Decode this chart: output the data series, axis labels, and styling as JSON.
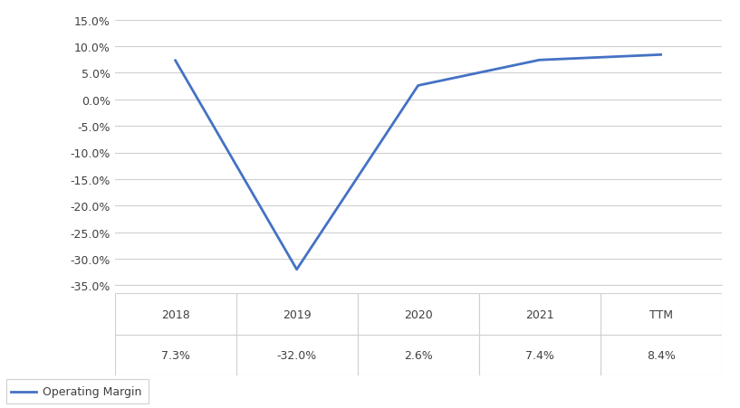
{
  "categories": [
    "2018",
    "2019",
    "2020",
    "2021",
    "TTM"
  ],
  "values": [
    7.3,
    -32.0,
    2.6,
    7.4,
    8.4
  ],
  "line_color": "#4472C4",
  "line_width": 2.0,
  "ylim": [
    -35.0,
    15.0
  ],
  "yticks": [
    -35.0,
    -30.0,
    -25.0,
    -20.0,
    -15.0,
    -10.0,
    -5.0,
    0.0,
    5.0,
    10.0,
    15.0
  ],
  "table_labels": [
    "7.3%",
    "-32.0%",
    "2.6%",
    "7.4%",
    "8.4%"
  ],
  "legend_label": "Operating Margin",
  "grid_color": "#D0D0D0",
  "background_color": "#FFFFFF",
  "font_color": "#404040",
  "table_font_size": 9,
  "tick_font_size": 9,
  "legend_font_size": 9
}
